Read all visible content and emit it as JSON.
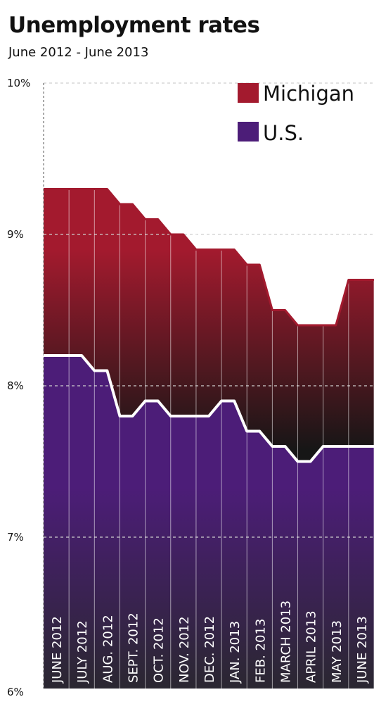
{
  "chart_data": {
    "type": "area",
    "title": "Unemployment rates",
    "subtitle": "June 2012 - June 2013",
    "categories": [
      "JUNE 2012",
      "JULY 2012",
      "AUG. 2012",
      "SEPT. 2012",
      "OCT. 2012",
      "NOV. 2012",
      "DEC. 2012",
      "JAN. 2013",
      "FEB. 2013",
      "MARCH 2013",
      "APRIL 2013",
      "MAY 2013",
      "JUNE 2013"
    ],
    "series": [
      {
        "name": "Michigan",
        "values": [
          9.3,
          9.3,
          9.3,
          9.2,
          9.1,
          9.0,
          8.9,
          8.9,
          8.8,
          8.5,
          8.4,
          8.4,
          8.7
        ]
      },
      {
        "name": "U.S.",
        "values": [
          8.2,
          8.2,
          8.1,
          7.8,
          7.9,
          7.8,
          7.8,
          7.9,
          7.7,
          7.6,
          7.5,
          7.6,
          7.6
        ]
      }
    ],
    "ylim": [
      6,
      10
    ],
    "yticks": [
      10,
      9,
      8,
      7,
      6
    ],
    "ytick_labels": [
      "10%",
      "9%",
      "8%",
      "7%",
      "6%"
    ],
    "grid": true,
    "legend_position": "top-right",
    "colors": {
      "michigan": "#a31a2e",
      "us": "#4c1d78",
      "us_line": "#ffffff",
      "transition_dark": "#161616",
      "bottom_dark": "#2a2730"
    }
  }
}
